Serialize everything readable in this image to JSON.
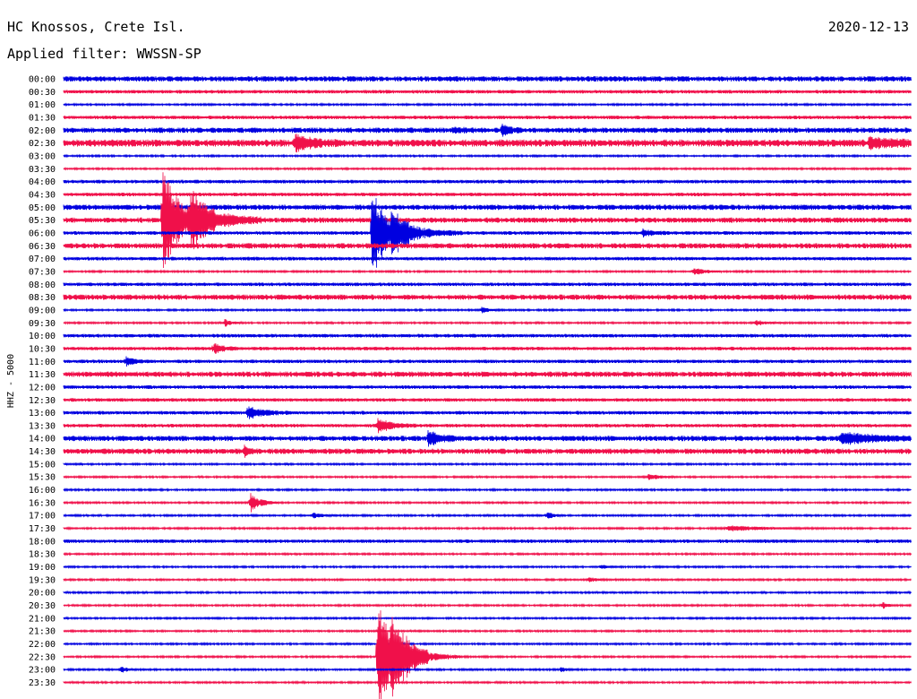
{
  "station_title": "HC Knossos, Crete Isl.",
  "date": "2020-12-13",
  "filter_label": "Applied filter: WWSSN-SP",
  "channel_label": "HHZ - 5000",
  "colors": {
    "odd_trace": "#0000e0",
    "even_trace": "#f0104a",
    "background": "#ffffff"
  },
  "chart_data": {
    "type": "line",
    "title": "HC Knossos, Crete Isl.",
    "subtitle": "Applied filter: WWSSN-SP",
    "date": "2020-12-13",
    "ylabel": "HHZ - 5000",
    "xlabel": "",
    "minutes_per_line": 30,
    "line_colors": [
      "#0000e0",
      "#f0104a"
    ],
    "rows": [
      "00:00",
      "00:30",
      "01:00",
      "01:30",
      "02:00",
      "02:30",
      "03:00",
      "03:30",
      "04:00",
      "04:30",
      "05:00",
      "05:30",
      "06:00",
      "06:30",
      "07:00",
      "07:30",
      "08:00",
      "08:30",
      "09:00",
      "09:30",
      "10:00",
      "10:30",
      "11:00",
      "11:30",
      "12:00",
      "12:30",
      "13:00",
      "13:30",
      "14:00",
      "14:30",
      "15:00",
      "15:30",
      "16:00",
      "16:30",
      "17:00",
      "17:30",
      "18:00",
      "18:30",
      "19:00",
      "19:30",
      "20:00",
      "20:30",
      "21:00",
      "21:30",
      "22:00",
      "22:30",
      "23:00",
      "23:30"
    ],
    "noise": [
      3,
      2,
      1,
      2,
      3,
      4,
      1,
      1,
      2,
      2,
      3,
      3,
      2,
      3,
      2,
      1,
      2,
      3,
      1,
      1,
      2,
      2,
      2,
      3,
      2,
      2,
      2,
      2,
      3,
      3,
      1,
      1,
      1,
      1,
      1,
      1,
      2,
      1,
      1,
      1,
      1,
      1,
      1,
      1,
      1,
      1,
      1,
      1
    ],
    "events": [
      {
        "row": 4,
        "minute": 15.5,
        "amplitude": 7,
        "duration": 0.8
      },
      {
        "row": 4,
        "minute": 13.8,
        "amplitude": 2,
        "duration": 1.2
      },
      {
        "row": 5,
        "minute": 8.2,
        "amplitude": 9,
        "duration": 1.8
      },
      {
        "row": 5,
        "minute": 28.5,
        "amplitude": 5,
        "duration": 2.5
      },
      {
        "row": 11,
        "minute": 3.5,
        "amplitude": 60,
        "duration": 1.8
      },
      {
        "row": 11,
        "minute": 4.5,
        "amplitude": 25,
        "duration": 2.5
      },
      {
        "row": 12,
        "minute": 10.9,
        "amplitude": 55,
        "duration": 1.5
      },
      {
        "row": 12,
        "minute": 11.6,
        "amplitude": 18,
        "duration": 2.5
      },
      {
        "row": 12,
        "minute": 20.5,
        "amplitude": 4,
        "duration": 1.0
      },
      {
        "row": 15,
        "minute": 22.3,
        "amplitude": 5,
        "duration": 1.0
      },
      {
        "row": 18,
        "minute": 14.8,
        "amplitude": 4,
        "duration": 0.6
      },
      {
        "row": 19,
        "minute": 5.7,
        "amplitude": 4,
        "duration": 0.6
      },
      {
        "row": 19,
        "minute": 24.5,
        "amplitude": 3,
        "duration": 1.0
      },
      {
        "row": 21,
        "minute": 5.3,
        "amplitude": 8,
        "duration": 0.8
      },
      {
        "row": 22,
        "minute": 2.2,
        "amplitude": 6,
        "duration": 0.8
      },
      {
        "row": 26,
        "minute": 6.5,
        "amplitude": 7,
        "duration": 1.6
      },
      {
        "row": 27,
        "minute": 11.1,
        "amplitude": 8,
        "duration": 1.4
      },
      {
        "row": 28,
        "minute": 12.9,
        "amplitude": 8,
        "duration": 1.4
      },
      {
        "row": 28,
        "minute": 27.5,
        "amplitude": 6,
        "duration": 3.5
      },
      {
        "row": 29,
        "minute": 6.4,
        "amplitude": 5,
        "duration": 0.5
      },
      {
        "row": 31,
        "minute": 20.7,
        "amplitude": 4,
        "duration": 1.0
      },
      {
        "row": 33,
        "minute": 6.6,
        "amplitude": 12,
        "duration": 1.0
      },
      {
        "row": 34,
        "minute": 17.1,
        "amplitude": 5,
        "duration": 0.6
      },
      {
        "row": 34,
        "minute": 8.8,
        "amplitude": 3,
        "duration": 1.0
      },
      {
        "row": 35,
        "minute": 23.5,
        "amplitude": 3,
        "duration": 3.5
      },
      {
        "row": 38,
        "minute": 19.0,
        "amplitude": 3,
        "duration": 0.6
      },
      {
        "row": 39,
        "minute": 18.6,
        "amplitude": 3,
        "duration": 0.6
      },
      {
        "row": 41,
        "minute": 29.0,
        "amplitude": 4,
        "duration": 0.4
      },
      {
        "row": 45,
        "minute": 11.1,
        "amplitude": 70,
        "duration": 1.8
      },
      {
        "row": 45,
        "minute": 11.6,
        "amplitude": 22,
        "duration": 2.5
      },
      {
        "row": 46,
        "minute": 2.0,
        "amplitude": 4,
        "duration": 0.6
      },
      {
        "row": 46,
        "minute": 17.6,
        "amplitude": 3,
        "duration": 0.5
      }
    ]
  }
}
